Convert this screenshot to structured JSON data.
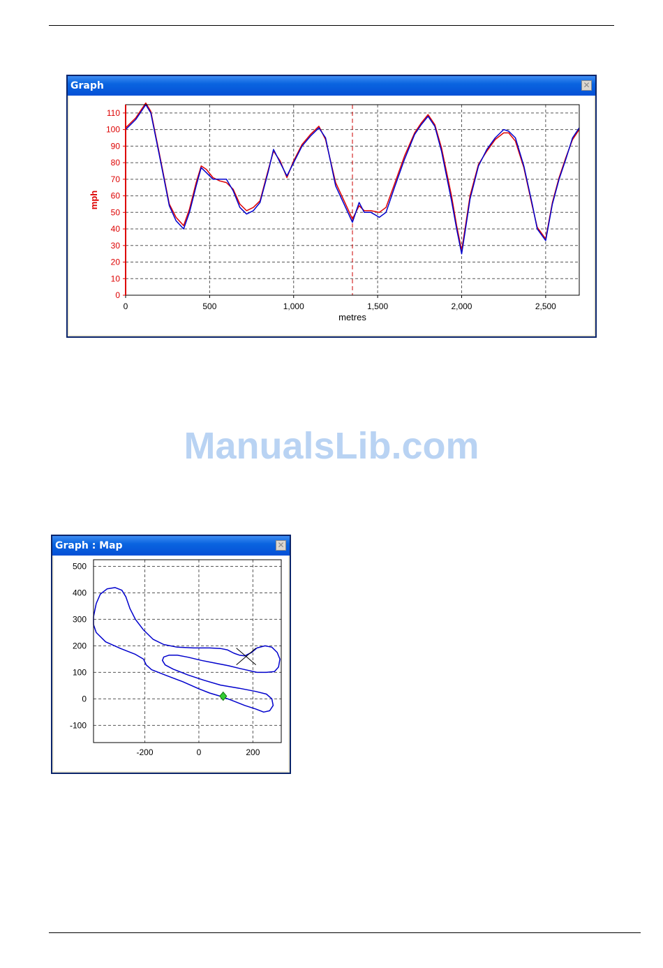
{
  "watermark": "ManualsLib.com",
  "speed_window": {
    "title": "Graph",
    "close_glyph": "✕"
  },
  "map_window": {
    "title": "Graph : Map",
    "close_glyph": "✕"
  },
  "colors": {
    "red_run": "#dd0000",
    "blue_run": "#0000cc",
    "grid": "#555555",
    "marker": "#33cc33"
  },
  "chart_data": [
    {
      "type": "line",
      "xlabel": "metres",
      "ylabel": "mph",
      "xlim": [
        0,
        2700
      ],
      "ylim": [
        0,
        115
      ],
      "x_ticks": [
        0,
        500,
        1000,
        1500,
        2000,
        2500
      ],
      "x_tick_labels": [
        "0",
        "500",
        "1,000",
        "1,500",
        "2,000",
        "2,500"
      ],
      "y_ticks": [
        0,
        10,
        20,
        30,
        40,
        50,
        60,
        70,
        80,
        90,
        100,
        110
      ],
      "y_tick_labels": [
        "0",
        "10",
        "20",
        "30",
        "40",
        "50",
        "60",
        "70",
        "80",
        "90",
        "100",
        "110"
      ],
      "grid": true,
      "cursor_x": 1350,
      "series": [
        {
          "color": "#0000cc",
          "points": [
            [
              0,
              100
            ],
            [
              60,
              106
            ],
            [
              120,
              115
            ],
            [
              150,
              110
            ],
            [
              200,
              85
            ],
            [
              260,
              54
            ],
            [
              300,
              45
            ],
            [
              345,
              40
            ],
            [
              380,
              50
            ],
            [
              420,
              66
            ],
            [
              450,
              77
            ],
            [
              480,
              74
            ],
            [
              520,
              70
            ],
            [
              560,
              70
            ],
            [
              600,
              70
            ],
            [
              640,
              63
            ],
            [
              680,
              53
            ],
            [
              720,
              49
            ],
            [
              760,
              51
            ],
            [
              800,
              56
            ],
            [
              850,
              75
            ],
            [
              880,
              88
            ],
            [
              920,
              80
            ],
            [
              960,
              72
            ],
            [
              1000,
              80
            ],
            [
              1050,
              90
            ],
            [
              1100,
              96
            ],
            [
              1150,
              101
            ],
            [
              1190,
              95
            ],
            [
              1250,
              66
            ],
            [
              1300,
              55
            ],
            [
              1350,
              44
            ],
            [
              1390,
              56
            ],
            [
              1420,
              50
            ],
            [
              1460,
              50
            ],
            [
              1510,
              47
            ],
            [
              1550,
              50
            ],
            [
              1600,
              65
            ],
            [
              1660,
              82
            ],
            [
              1720,
              97
            ],
            [
              1760,
              103
            ],
            [
              1800,
              108
            ],
            [
              1840,
              102
            ],
            [
              1880,
              87
            ],
            [
              1940,
              57
            ],
            [
              1970,
              40
            ],
            [
              2000,
              25
            ],
            [
              2020,
              38
            ],
            [
              2050,
              58
            ],
            [
              2100,
              78
            ],
            [
              2150,
              88
            ],
            [
              2200,
              95
            ],
            [
              2250,
              100
            ],
            [
              2280,
              99
            ],
            [
              2320,
              95
            ],
            [
              2370,
              78
            ],
            [
              2420,
              55
            ],
            [
              2450,
              40
            ],
            [
              2500,
              33
            ],
            [
              2540,
              55
            ],
            [
              2580,
              70
            ],
            [
              2620,
              82
            ],
            [
              2660,
              95
            ],
            [
              2700,
              101
            ]
          ]
        },
        {
          "color": "#dd0000",
          "points": [
            [
              0,
              101
            ],
            [
              60,
              107
            ],
            [
              120,
              116
            ],
            [
              150,
              111
            ],
            [
              200,
              86
            ],
            [
              260,
              55
            ],
            [
              300,
              47
            ],
            [
              345,
              42
            ],
            [
              380,
              52
            ],
            [
              420,
              68
            ],
            [
              450,
              78
            ],
            [
              480,
              76
            ],
            [
              520,
              71
            ],
            [
              560,
              69
            ],
            [
              600,
              68
            ],
            [
              640,
              64
            ],
            [
              680,
              55
            ],
            [
              720,
              51
            ],
            [
              760,
              53
            ],
            [
              800,
              57
            ],
            [
              850,
              76
            ],
            [
              880,
              87
            ],
            [
              920,
              81
            ],
            [
              960,
              71
            ],
            [
              1000,
              81
            ],
            [
              1050,
              91
            ],
            [
              1100,
              97
            ],
            [
              1150,
              102
            ],
            [
              1190,
              94
            ],
            [
              1250,
              68
            ],
            [
              1300,
              57
            ],
            [
              1350,
              46
            ],
            [
              1390,
              54
            ],
            [
              1420,
              51
            ],
            [
              1460,
              51
            ],
            [
              1510,
              50
            ],
            [
              1550,
              53
            ],
            [
              1600,
              67
            ],
            [
              1660,
              84
            ],
            [
              1720,
              98
            ],
            [
              1760,
              104
            ],
            [
              1800,
              109
            ],
            [
              1840,
              103
            ],
            [
              1880,
              89
            ],
            [
              1940,
              60
            ],
            [
              1970,
              42
            ],
            [
              2000,
              27
            ],
            [
              2020,
              40
            ],
            [
              2050,
              60
            ],
            [
              2100,
              79
            ],
            [
              2150,
              87
            ],
            [
              2200,
              94
            ],
            [
              2250,
              98
            ],
            [
              2280,
              98
            ],
            [
              2320,
              93
            ],
            [
              2370,
              77
            ],
            [
              2420,
              54
            ],
            [
              2450,
              41
            ],
            [
              2500,
              34
            ],
            [
              2540,
              56
            ],
            [
              2580,
              71
            ],
            [
              2620,
              83
            ],
            [
              2660,
              94
            ],
            [
              2700,
              100
            ]
          ]
        }
      ]
    },
    {
      "type": "scatter",
      "xlim": [
        -390,
        305
      ],
      "ylim": [
        -165,
        525
      ],
      "x_ticks": [
        -200,
        0,
        200
      ],
      "x_tick_labels": [
        "-200",
        "0",
        "200"
      ],
      "y_ticks": [
        -100,
        0,
        100,
        200,
        300,
        400,
        500
      ],
      "y_tick_labels": [
        "-100",
        "0",
        "100",
        "200",
        "300",
        "400",
        "500"
      ],
      "grid": true,
      "track": [
        [
          -390,
          310
        ],
        [
          -380,
          360
        ],
        [
          -365,
          395
        ],
        [
          -340,
          415
        ],
        [
          -310,
          420
        ],
        [
          -285,
          410
        ],
        [
          -270,
          385
        ],
        [
          -255,
          340
        ],
        [
          -235,
          300
        ],
        [
          -205,
          260
        ],
        [
          -170,
          225
        ],
        [
          -130,
          205
        ],
        [
          -80,
          195
        ],
        [
          -20,
          192
        ],
        [
          40,
          192
        ],
        [
          80,
          190
        ],
        [
          105,
          185
        ],
        [
          130,
          172
        ],
        [
          150,
          165
        ],
        [
          170,
          162
        ],
        [
          195,
          175
        ],
        [
          215,
          192
        ],
        [
          245,
          200
        ],
        [
          270,
          195
        ],
        [
          290,
          175
        ],
        [
          300,
          150
        ],
        [
          295,
          120
        ],
        [
          280,
          103
        ],
        [
          250,
          100
        ],
        [
          215,
          100
        ],
        [
          180,
          108
        ],
        [
          150,
          115
        ],
        [
          110,
          125
        ],
        [
          60,
          135
        ],
        [
          10,
          145
        ],
        [
          -40,
          157
        ],
        [
          -80,
          165
        ],
        [
          -110,
          165
        ],
        [
          -130,
          158
        ],
        [
          -135,
          145
        ],
        [
          -125,
          128
        ],
        [
          -95,
          112
        ],
        [
          -40,
          90
        ],
        [
          20,
          70
        ],
        [
          80,
          52
        ],
        [
          150,
          40
        ],
        [
          210,
          28
        ],
        [
          250,
          18
        ],
        [
          270,
          0
        ],
        [
          275,
          -25
        ],
        [
          262,
          -45
        ],
        [
          240,
          -50
        ],
        [
          210,
          -38
        ],
        [
          170,
          -25
        ],
        [
          120,
          -5
        ],
        [
          80,
          10
        ],
        [
          40,
          22
        ],
        [
          0,
          38
        ],
        [
          -60,
          65
        ],
        [
          -120,
          88
        ],
        [
          -175,
          110
        ],
        [
          -195,
          128
        ],
        [
          -205,
          150
        ],
        [
          -235,
          168
        ],
        [
          -290,
          190
        ],
        [
          -345,
          215
        ],
        [
          -380,
          250
        ],
        [
          -390,
          280
        ],
        [
          -390,
          310
        ]
      ],
      "start_marker": [
        175,
        160
      ],
      "position_marker": [
        90,
        10
      ]
    }
  ]
}
